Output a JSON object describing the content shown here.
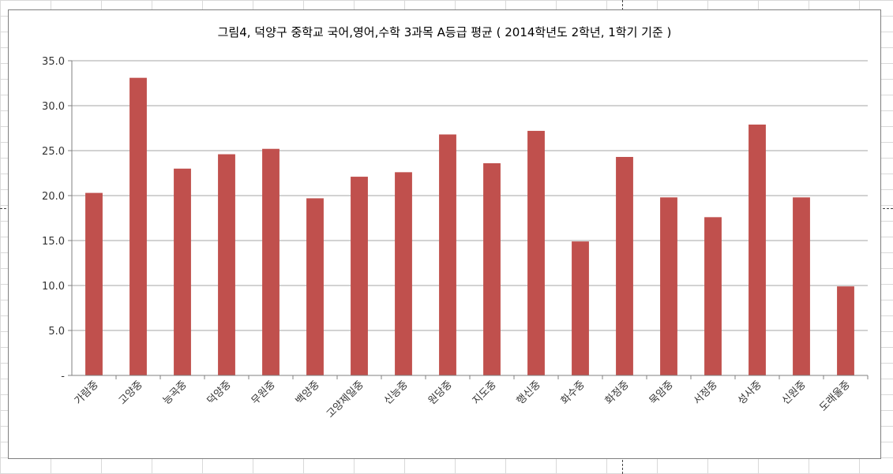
{
  "chart_data": {
    "type": "bar",
    "title": "그림4, 덕양구 중학교 국어,영어,수학 3과목 A등급 평균 ( 2014학년도 2학년, 1학기 기준 )",
    "xlabel": "",
    "ylabel": "",
    "ylim": [
      0,
      35
    ],
    "yticks": [
      0,
      5,
      10,
      15,
      20,
      25,
      30,
      35
    ],
    "ytick_labels": [
      "-",
      "5.0",
      "10.0",
      "15.0",
      "20.0",
      "25.0",
      "30.0",
      "35.0"
    ],
    "grid": true,
    "legend": "none",
    "bar_color": "#c0504d",
    "categories": [
      "가람중",
      "고양중",
      "능곡중",
      "덕양중",
      "무원중",
      "백양중",
      "고양제일중",
      "신능중",
      "원당중",
      "지도중",
      "행신중",
      "화수중",
      "화정중",
      "묵암중",
      "서정중",
      "성사중",
      "신원중",
      "도래울중"
    ],
    "values": [
      20.3,
      33.1,
      23.0,
      24.6,
      25.2,
      19.7,
      22.1,
      22.6,
      26.8,
      23.6,
      27.2,
      14.9,
      24.3,
      19.8,
      17.6,
      27.9,
      19.8,
      9.9
    ]
  }
}
